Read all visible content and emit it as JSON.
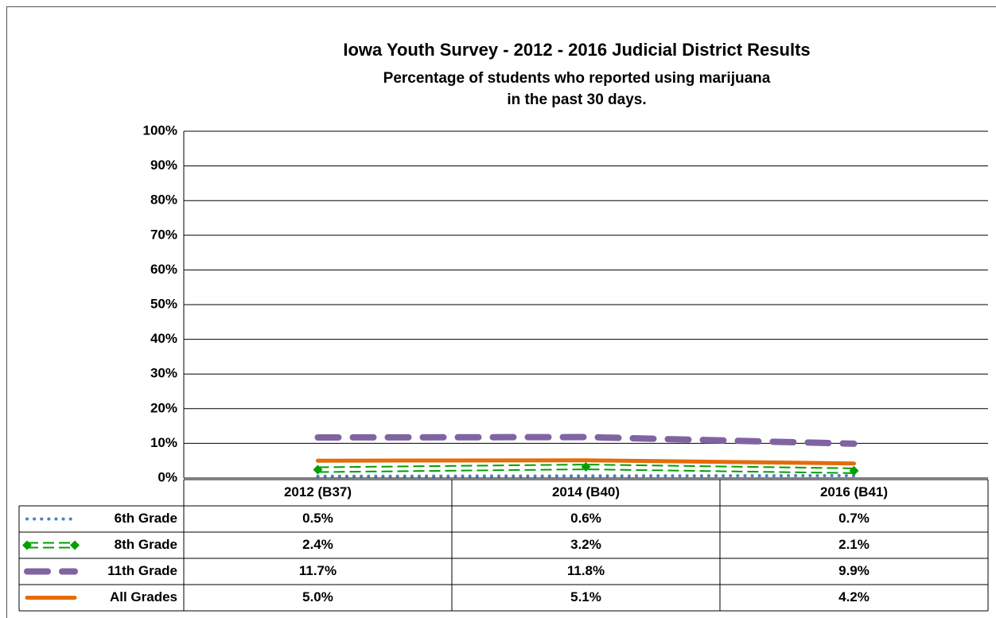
{
  "chart_data": {
    "type": "line",
    "title": "Iowa Youth Survey - 2012 - 2016 Judicial District Results",
    "subtitle": [
      "Percentage of students who reported using marijuana",
      "in the past 30 days."
    ],
    "categories": [
      "2012 (B37)",
      "2014 (B40)",
      "2016 (B41)"
    ],
    "series": [
      {
        "name": "6th Grade",
        "color": "#4f81bd",
        "style": "dotted",
        "values": [
          0.5,
          0.6,
          0.7
        ],
        "value_labels": [
          "0.5%",
          "0.6%",
          "0.7%"
        ]
      },
      {
        "name": "8th Grade",
        "color": "#00a000",
        "style": "double-dashed",
        "marker": "diamond",
        "values": [
          2.4,
          3.2,
          2.1
        ],
        "value_labels": [
          "2.4%",
          "3.2%",
          "2.1%"
        ]
      },
      {
        "name": "11th Grade",
        "color": "#8064a2",
        "style": "dashed",
        "values": [
          11.7,
          11.8,
          9.9
        ],
        "value_labels": [
          "11.7%",
          "11.8%",
          "9.9%"
        ]
      },
      {
        "name": "All Grades",
        "color": "#e46c0a",
        "style": "solid",
        "values": [
          5.0,
          5.1,
          4.2
        ],
        "value_labels": [
          "5.0%",
          "5.1%",
          "4.2%"
        ]
      }
    ],
    "ylim": [
      0,
      100
    ],
    "yticks": [
      {
        "value": 0,
        "label": "0%"
      },
      {
        "value": 10,
        "label": "10%"
      },
      {
        "value": 20,
        "label": "20%"
      },
      {
        "value": 30,
        "label": "30%"
      },
      {
        "value": 40,
        "label": "40%"
      },
      {
        "value": 50,
        "label": "50%"
      },
      {
        "value": 60,
        "label": "60%"
      },
      {
        "value": 70,
        "label": "70%"
      },
      {
        "value": 80,
        "label": "80%"
      },
      {
        "value": 90,
        "label": "90%"
      },
      {
        "value": 100,
        "label": "100%"
      }
    ],
    "grid": true
  }
}
